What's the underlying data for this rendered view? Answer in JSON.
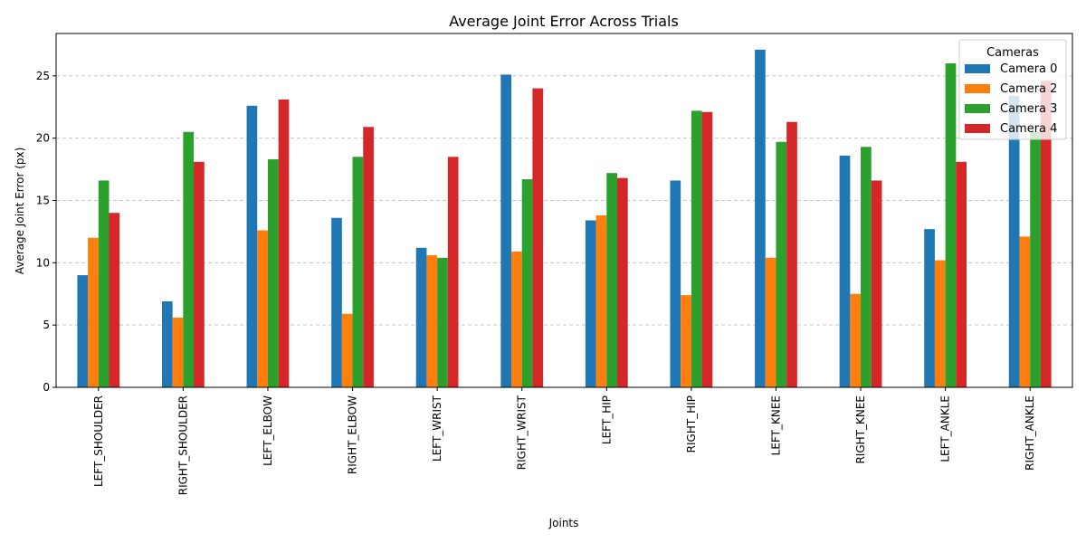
{
  "chart_data": {
    "type": "bar",
    "title": "Average Joint Error Across Trials",
    "xlabel": "Joints",
    "ylabel": "Average Joint Error (px)",
    "ylim": [
      0,
      28.4
    ],
    "yticks": [
      0,
      5,
      10,
      15,
      20,
      25
    ],
    "grid": "y-dashed",
    "legend_title": "Cameras",
    "legend_position": "top-right",
    "categories": [
      "LEFT_SHOULDER",
      "RIGHT_SHOULDER",
      "LEFT_ELBOW",
      "RIGHT_ELBOW",
      "LEFT_WRIST",
      "RIGHT_WRIST",
      "LEFT_HIP",
      "RIGHT_HIP",
      "LEFT_KNEE",
      "RIGHT_KNEE",
      "LEFT_ANKLE",
      "RIGHT_ANKLE"
    ],
    "series": [
      {
        "name": "Camera 0",
        "color": "#1f77b4",
        "values": [
          9.0,
          6.9,
          22.6,
          13.6,
          11.2,
          25.1,
          13.4,
          16.6,
          27.1,
          18.6,
          12.7,
          23.4
        ]
      },
      {
        "name": "Camera 2",
        "color": "#ff7f0e",
        "values": [
          12.0,
          5.6,
          12.6,
          5.9,
          10.6,
          10.9,
          13.8,
          7.4,
          10.4,
          7.5,
          10.2,
          12.1
        ]
      },
      {
        "name": "Camera 3",
        "color": "#2ca02c",
        "values": [
          16.6,
          20.5,
          18.3,
          18.5,
          10.4,
          16.7,
          17.2,
          22.2,
          19.7,
          19.3,
          26.0,
          20.5
        ]
      },
      {
        "name": "Camera 4",
        "color": "#d62728",
        "values": [
          14.0,
          18.1,
          23.1,
          20.9,
          18.5,
          24.0,
          16.8,
          22.1,
          21.3,
          16.6,
          18.1,
          24.6
        ]
      }
    ]
  }
}
